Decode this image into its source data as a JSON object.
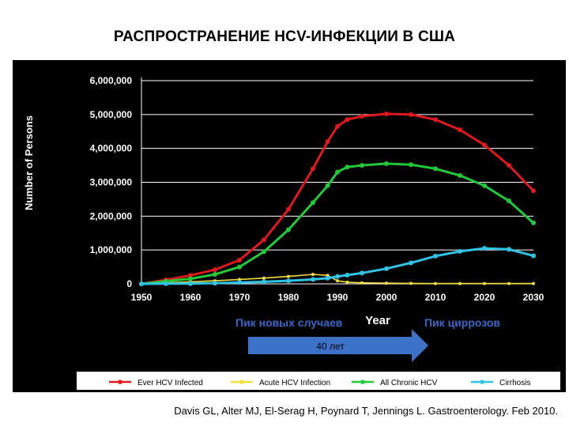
{
  "slide_title": "РАСПРОСТРАНЕНИЕ HCV-ИНФЕКЦИИ В США",
  "citation": "Davis GL, Alter MJ, El-Serag H, Poynard T, Jennings L. Gastroenterology. Feb 2010.",
  "annotations": {
    "new_cases_peak": "Пик новых случаев",
    "cirrhosis_peak": "Пик циррозов",
    "arrow_label": "40 лет"
  },
  "colors": {
    "background": "#000000",
    "ever_infected": "#e0191c",
    "acute": "#f2df3c",
    "chronic": "#22c93a",
    "cirrhosis": "#2fc4e6",
    "annotation_text": "#3b67c9",
    "arrow": "#3c73c8"
  },
  "chart_data": {
    "type": "line",
    "xlabel": "Year",
    "ylabel": "Number of Persons",
    "xlim": [
      1950,
      2030
    ],
    "ylim": [
      0,
      6000000
    ],
    "x_ticks": [
      "1950",
      "1960",
      "1970",
      "1980",
      "1990",
      "2000",
      "2010",
      "2020",
      "2030"
    ],
    "y_ticks": [
      "0",
      "1,000,000",
      "2,000,000",
      "3,000,000",
      "4,000,000",
      "5,000,000",
      "6,000,000"
    ],
    "grid": "horizontal",
    "legend_position": "bottom",
    "x": [
      1950,
      1955,
      1960,
      1965,
      1970,
      1975,
      1980,
      1985,
      1988,
      1990,
      1992,
      1995,
      2000,
      2005,
      2010,
      2015,
      2020,
      2025,
      2030
    ],
    "series": [
      {
        "name": "Ever HCV Infected",
        "values": [
          0,
          120000,
          250000,
          420000,
          700000,
          1300000,
          2200000,
          3400000,
          4200000,
          4650000,
          4850000,
          4950000,
          5020000,
          5000000,
          4850000,
          4550000,
          4100000,
          3500000,
          2750000
        ]
      },
      {
        "name": "Acute HCV Infection",
        "values": [
          0,
          30000,
          60000,
          90000,
          130000,
          170000,
          220000,
          280000,
          250000,
          90000,
          50000,
          30000,
          20000,
          15000,
          10000,
          10000,
          10000,
          10000,
          10000
        ]
      },
      {
        "name": "All Chronic HCV",
        "values": [
          0,
          80000,
          150000,
          280000,
          500000,
          950000,
          1600000,
          2400000,
          2900000,
          3300000,
          3450000,
          3500000,
          3550000,
          3520000,
          3400000,
          3200000,
          2900000,
          2450000,
          1800000
        ]
      },
      {
        "name": "Cirrhosis",
        "values": [
          0,
          5000,
          10000,
          20000,
          40000,
          60000,
          90000,
          130000,
          170000,
          220000,
          260000,
          320000,
          450000,
          620000,
          820000,
          960000,
          1050000,
          1020000,
          830000
        ]
      }
    ]
  }
}
